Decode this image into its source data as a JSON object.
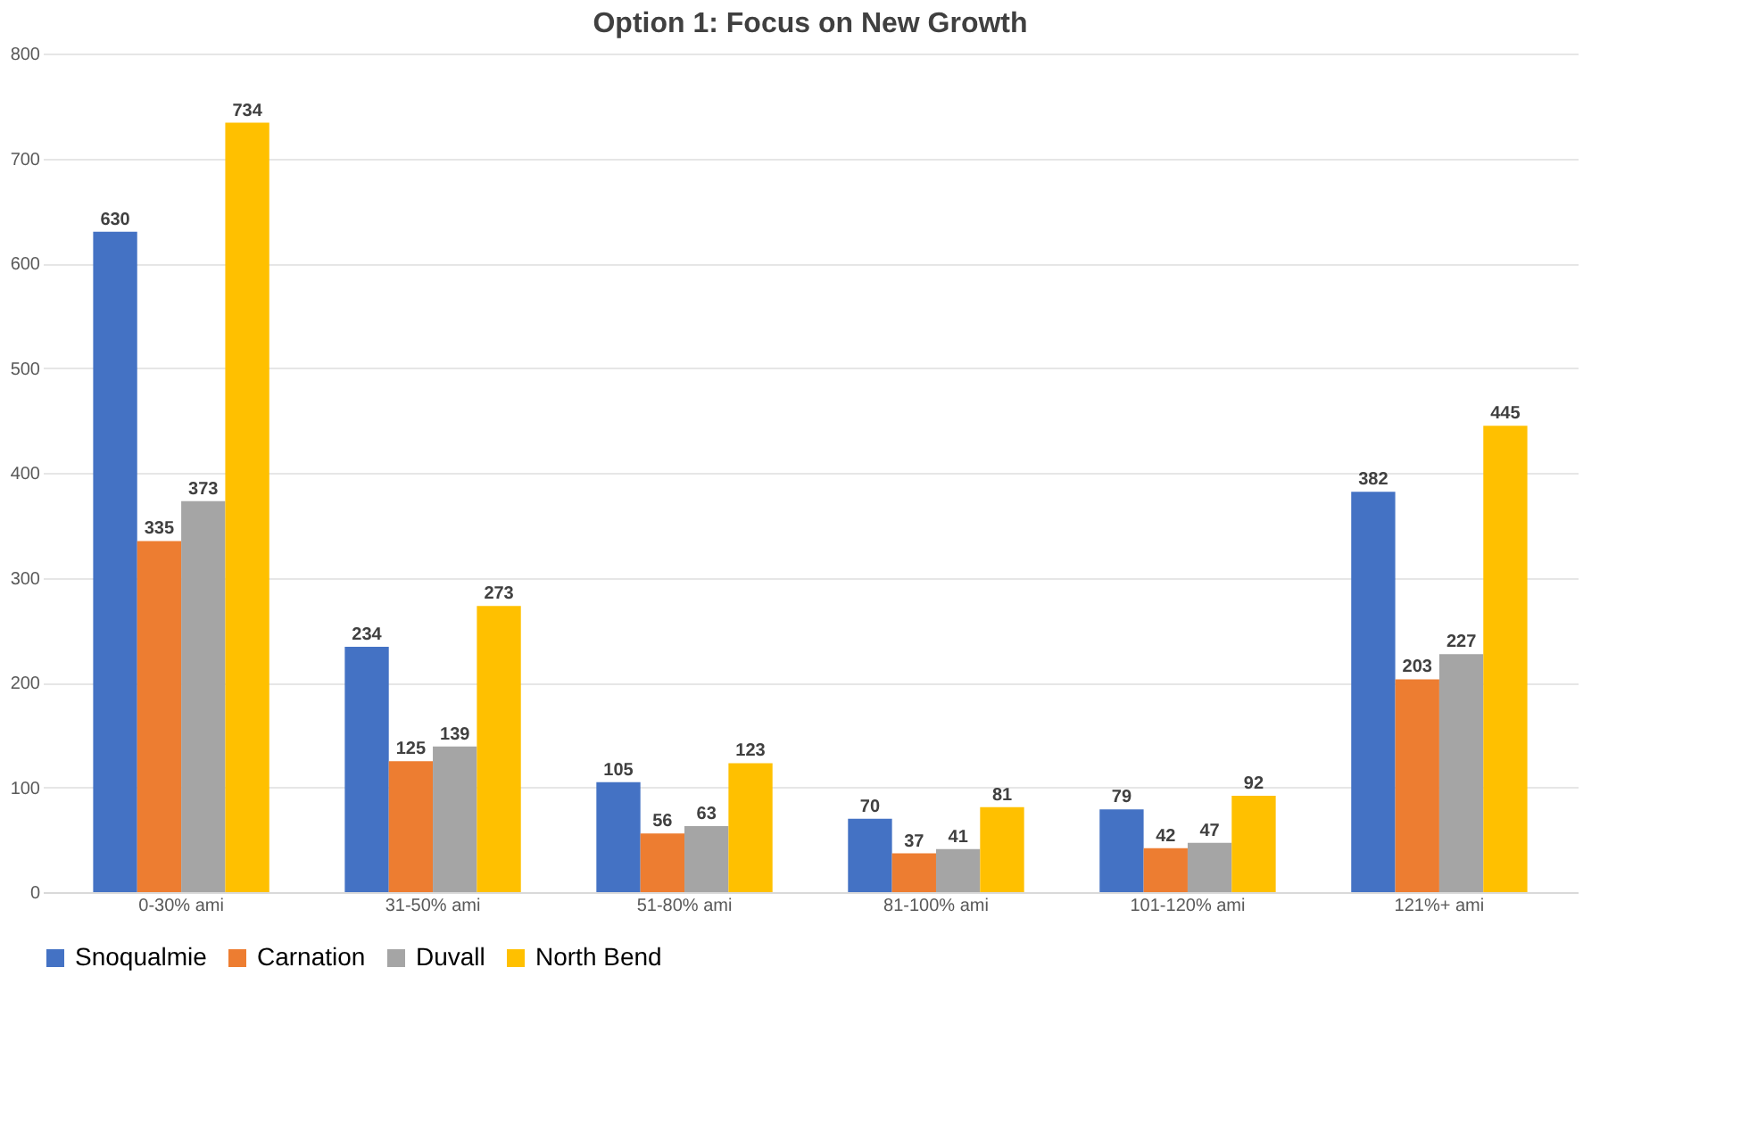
{
  "chart_data": {
    "type": "bar",
    "title": "Option 1: Focus on New Growth",
    "categories": [
      "0-30% ami",
      "31-50% ami",
      "51-80% ami",
      "81-100% ami",
      "101-120% ami",
      "121%+ ami"
    ],
    "series": [
      {
        "name": "Snoqualmie",
        "color": "#4472c4",
        "values": [
          630,
          234,
          105,
          70,
          79,
          382
        ]
      },
      {
        "name": "Carnation",
        "color": "#ed7d31",
        "values": [
          335,
          125,
          56,
          37,
          42,
          203
        ]
      },
      {
        "name": "Duvall",
        "color": "#a5a5a5",
        "values": [
          373,
          139,
          63,
          41,
          47,
          227
        ]
      },
      {
        "name": "North Bend",
        "color": "#ffc000",
        "values": [
          734,
          273,
          123,
          81,
          92,
          445
        ]
      }
    ],
    "ylim": [
      0,
      800
    ],
    "yticks": [
      0,
      100,
      200,
      300,
      400,
      500,
      600,
      700,
      800
    ],
    "grid": "y",
    "legend": "bottom",
    "data_labels": true
  }
}
